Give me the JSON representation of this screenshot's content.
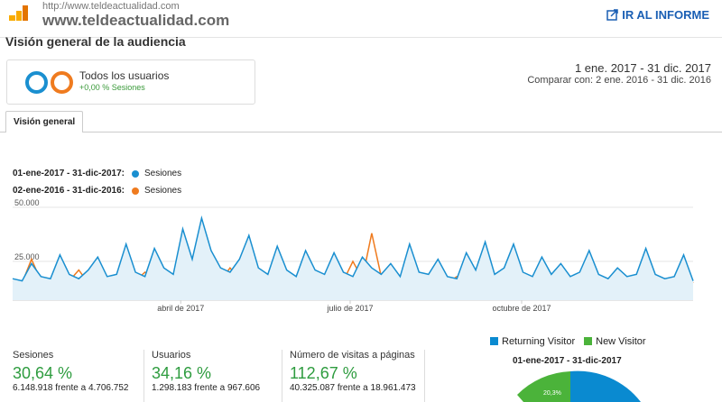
{
  "header": {
    "url": "http://www.teldeactualidad.com",
    "site": "www.teldeactualidad.com",
    "report_link": "IR AL INFORME"
  },
  "page_title": "Visión general de la audiencia",
  "segment": {
    "name": "Todos los usuarios",
    "sub": "+0,00 % Sesiones"
  },
  "date": {
    "main": "1 ene. 2017 - 31 dic. 2017",
    "compare": "Comparar con: 2 ene. 2016 - 31 dic. 2016"
  },
  "tab": "Visión general",
  "legend": [
    {
      "range": "01-ene-2017 - 31-dic-2017:",
      "metric": "Sesiones",
      "color": "#1a8fd0"
    },
    {
      "range": "02-ene-2016 - 31-dic-2016:",
      "metric": "Sesiones",
      "color": "#ef7b1f"
    }
  ],
  "chart_data": {
    "type": "line",
    "ylabel": "Sesiones",
    "ylim": [
      0,
      50000
    ],
    "yticks": [
      "50.000",
      "25.000"
    ],
    "xticks": [
      {
        "label": "abril de 2017",
        "pos": 0.247
      },
      {
        "label": "julio de 2017",
        "pos": 0.496
      },
      {
        "label": "octubre de 2017",
        "pos": 0.748
      }
    ],
    "series": [
      {
        "name": "01-ene-2017 - 31-dic-2017",
        "color": "#1a8fd0",
        "values": [
          17000,
          16000,
          24000,
          18000,
          17000,
          28000,
          19000,
          17000,
          21000,
          27000,
          18000,
          19000,
          33000,
          20000,
          18000,
          31000,
          22000,
          19000,
          40000,
          26000,
          45000,
          30000,
          22000,
          20000,
          26000,
          37000,
          22000,
          19000,
          32000,
          21000,
          18000,
          30000,
          21000,
          19000,
          29000,
          20000,
          18000,
          27000,
          22000,
          19000,
          24000,
          18000,
          33000,
          20000,
          19000,
          26000,
          18000,
          17000,
          29000,
          21000,
          34000,
          19000,
          22000,
          33000,
          20000,
          18000,
          27000,
          19000,
          24000,
          18000,
          20000,
          30000,
          19000,
          17000,
          22000,
          18000,
          19000,
          31000,
          19000,
          17000,
          18000,
          28000,
          16000
        ]
      },
      {
        "name": "02-ene-2016 - 31-dic-2016",
        "color": "#ef7b1f",
        "values": [
          16000,
          15000,
          26000,
          16000,
          15000,
          17000,
          16000,
          21000,
          15000,
          17000,
          16000,
          15000,
          18000,
          16000,
          20000,
          16000,
          15000,
          19000,
          16000,
          17000,
          15000,
          18000,
          16000,
          22000,
          17000,
          15000,
          18000,
          16000,
          15000,
          19000,
          16000,
          17000,
          16000,
          15000,
          17000,
          16000,
          25000,
          17000,
          38000,
          18000,
          16000,
          17000,
          21000,
          16000,
          19000,
          17000,
          15000,
          18000,
          16000,
          17000,
          19000,
          16000,
          18000,
          20000,
          16000,
          17000,
          18000,
          16000,
          20000,
          17000,
          16000,
          18000,
          17000,
          16000,
          19000,
          17000,
          16000,
          15000,
          18000,
          17000,
          14000,
          20000,
          15000
        ]
      }
    ]
  },
  "metrics": [
    {
      "label": "Sesiones",
      "value": "30,64 %",
      "sub": "6.148.918 frente a 4.706.752"
    },
    {
      "label": "Usuarios",
      "value": "34,16 %",
      "sub": "1.298.183 frente a 967.606"
    },
    {
      "label": "Número de visitas a páginas",
      "value": "112,67 %",
      "sub": "40.325.087 frente a 18.961.473"
    }
  ],
  "pie": {
    "legend": [
      {
        "label": "Returning Visitor",
        "color": "#0a8ad0"
      },
      {
        "label": "New Visitor",
        "color": "#4bb33a"
      }
    ],
    "title": "01-ene-2017 - 31-dic-2017",
    "new_pct_label": "20,3%",
    "new_pct": 20.3
  }
}
